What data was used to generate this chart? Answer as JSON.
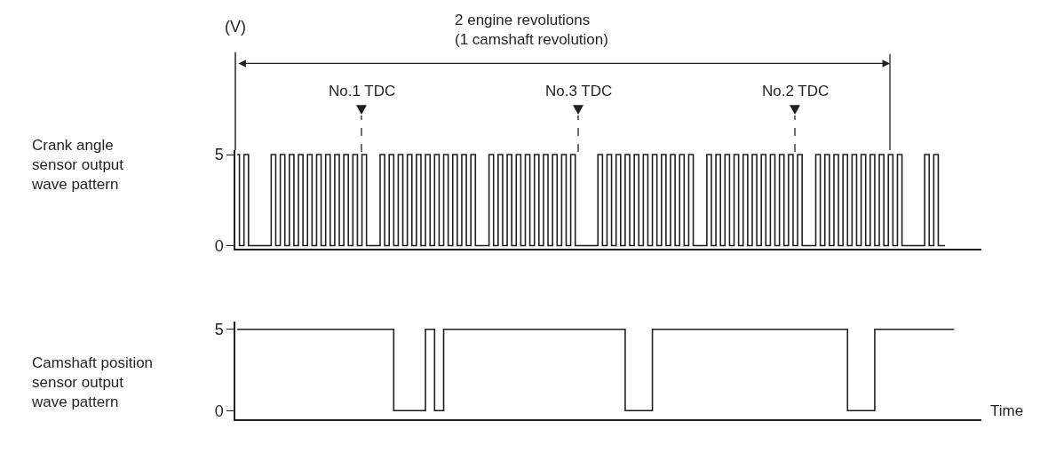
{
  "chart_data": [
    {
      "type": "step",
      "ylabel": "Crank angle\nsensor output\nwave pattern",
      "annotations": [
        "2 engine revolutions\n(1 camshaft revolution)",
        "No.1 TDC",
        "No.3 TDC",
        "No.2 TDC",
        "(V)"
      ],
      "categories": [
        null,
        null,
        null,
        null,
        null,
        null,
        null,
        null,
        null,
        null,
        null,
        null,
        null,
        null,
        null,
        null,
        null,
        null,
        null,
        null,
        null,
        null,
        null,
        null,
        null,
        null,
        null,
        null,
        null,
        null,
        null,
        null,
        null,
        null,
        null,
        null,
        null,
        null,
        null,
        null,
        null,
        null,
        null,
        null,
        null,
        null,
        null,
        null,
        null,
        null,
        null,
        null,
        null,
        null,
        null,
        null,
        null,
        null,
        null,
        null,
        null,
        null,
        null,
        null,
        null,
        null,
        null,
        null,
        null,
        null,
        null,
        null,
        null,
        null,
        null,
        null,
        null,
        null,
        null,
        null,
        null,
        null,
        null,
        null,
        null,
        null,
        null,
        null,
        null,
        null,
        null,
        null,
        null,
        null,
        null,
        null,
        null,
        null,
        null,
        null,
        null,
        null,
        null,
        null,
        null,
        null,
        null,
        null,
        null,
        null,
        null,
        null,
        null,
        null,
        null,
        null,
        null,
        null,
        null,
        null,
        null,
        null,
        null,
        null,
        null,
        null,
        null,
        null,
        null,
        null,
        null,
        null,
        null,
        null,
        null,
        null,
        null,
        null,
        null,
        null,
        null,
        null,
        null,
        null,
        null,
        null,
        null,
        null,
        null,
        null,
        null,
        null,
        null,
        null,
        null,
        null,
        null
      ],
      "series": [
        {
          "color": "#231f20",
          "values": [
            5,
            0,
            5,
            0,
            0,
            0,
            0,
            0,
            5,
            0,
            5,
            0,
            5,
            0,
            5,
            0,
            5,
            0,
            5,
            0,
            5,
            0,
            5,
            0,
            5,
            0,
            5,
            0,
            5,
            0,
            0,
            0,
            5,
            0,
            5,
            0,
            5,
            0,
            5,
            0,
            5,
            0,
            5,
            0,
            5,
            0,
            5,
            0,
            5,
            0,
            5,
            0,
            5,
            0,
            0,
            0,
            5,
            0,
            5,
            0,
            5,
            0,
            5,
            0,
            5,
            0,
            5,
            0,
            5,
            0,
            5,
            0,
            5,
            0,
            5,
            0,
            0,
            0,
            0,
            0,
            5,
            0,
            5,
            0,
            5,
            0,
            5,
            0,
            5,
            0,
            5,
            0,
            5,
            0,
            5,
            0,
            5,
            0,
            5,
            0,
            5,
            0,
            0,
            0,
            5,
            0,
            5,
            0,
            5,
            0,
            5,
            0,
            5,
            0,
            5,
            0,
            5,
            0,
            5,
            0,
            5,
            0,
            5,
            0,
            5,
            0,
            0,
            0,
            5,
            0,
            5,
            0,
            5,
            0,
            5,
            0,
            5,
            0,
            5,
            0,
            5,
            0,
            5,
            0,
            5,
            0,
            5,
            0,
            0,
            0,
            0,
            0,
            5,
            0,
            5,
            0,
            0
          ]
        }
      ],
      "ylim": [
        -0.15,
        5.24
      ],
      "yticks": [
        0,
        5
      ],
      "tick_labels": "y"
    },
    {
      "type": "step",
      "ylabel": "Camshaft position\nsensor output\nwave pattern",
      "xlabel": "Time",
      "categories": [
        null,
        null,
        null,
        null,
        null,
        null,
        null,
        null,
        null,
        null,
        null,
        null,
        null,
        null,
        null,
        null,
        null,
        null,
        null,
        null,
        null,
        null,
        null,
        null,
        null,
        null,
        null,
        null,
        null,
        null,
        null,
        null,
        null,
        null,
        null,
        null,
        null,
        null,
        null,
        null,
        null,
        null,
        null,
        null,
        null,
        null,
        null,
        null,
        null,
        null,
        null,
        null,
        null,
        null,
        null,
        null,
        null,
        null,
        null,
        null,
        null,
        null,
        null,
        null,
        null,
        null,
        null,
        null,
        null,
        null,
        null,
        null,
        null,
        null,
        null,
        null,
        null,
        null,
        null,
        null,
        null,
        null,
        null,
        null,
        null,
        null,
        null,
        null,
        null,
        null,
        null,
        null,
        null,
        null,
        null,
        null,
        null,
        null,
        null,
        null,
        null,
        null,
        null,
        null,
        null,
        null,
        null,
        null,
        null,
        null,
        null,
        null,
        null,
        null,
        null,
        null,
        null,
        null,
        null,
        null,
        null,
        null,
        null,
        null,
        null,
        null,
        null,
        null,
        null,
        null,
        null,
        null,
        null,
        null,
        null,
        null,
        null,
        null,
        null,
        null,
        null,
        null,
        null,
        null,
        null,
        null,
        null,
        null,
        null,
        null,
        null,
        null,
        null,
        null,
        null,
        null,
        null,
        null,
        null
      ],
      "series": [
        {
          "color": "#231f20",
          "values": [
            5,
            5,
            5,
            5,
            5,
            5,
            5,
            5,
            5,
            5,
            5,
            5,
            5,
            5,
            5,
            5,
            5,
            5,
            5,
            5,
            5,
            5,
            5,
            5,
            5,
            5,
            5,
            5,
            5,
            5,
            5,
            5,
            5,
            5,
            5,
            0,
            0,
            0,
            0,
            0,
            0,
            0,
            5,
            5,
            0,
            0,
            5,
            5,
            5,
            5,
            5,
            5,
            5,
            5,
            5,
            5,
            5,
            5,
            5,
            5,
            5,
            5,
            5,
            5,
            5,
            5,
            5,
            5,
            5,
            5,
            5,
            5,
            5,
            5,
            5,
            5,
            5,
            5,
            5,
            5,
            5,
            5,
            5,
            5,
            5,
            5,
            0,
            0,
            0,
            0,
            0,
            0,
            5,
            5,
            5,
            5,
            5,
            5,
            5,
            5,
            5,
            5,
            5,
            5,
            5,
            5,
            5,
            5,
            5,
            5,
            5,
            5,
            5,
            5,
            5,
            5,
            5,
            5,
            5,
            5,
            5,
            5,
            5,
            5,
            5,
            5,
            5,
            5,
            5,
            5,
            5,
            5,
            5,
            5,
            5,
            0,
            0,
            0,
            0,
            0,
            0,
            5,
            5,
            5,
            5,
            5,
            5,
            5,
            5,
            5,
            5,
            5,
            5,
            5,
            5,
            5,
            5,
            5,
            5
          ]
        }
      ],
      "ylim": [
        -0.53,
        5.5
      ],
      "yticks": [
        0,
        5
      ],
      "tick_labels": "y"
    }
  ]
}
